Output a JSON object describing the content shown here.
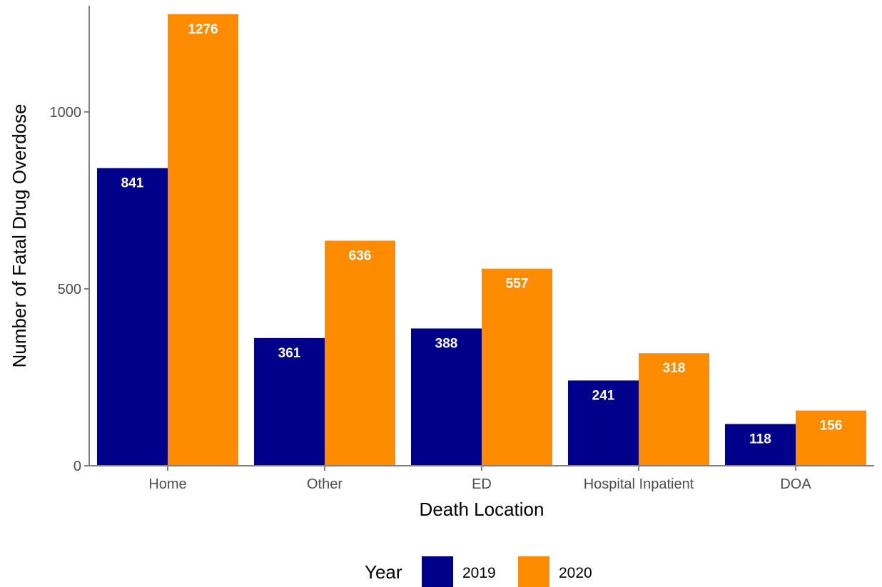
{
  "chart_data": {
    "type": "bar",
    "categories": [
      "Home",
      "Other",
      "ED",
      "Hospital Inpatient",
      "DOA"
    ],
    "series": [
      {
        "name": "2019",
        "values": [
          841,
          361,
          388,
          241,
          118
        ],
        "color": "#00008b"
      },
      {
        "name": "2020",
        "values": [
          1276,
          636,
          557,
          318,
          156
        ],
        "color": "#ff8c00"
      }
    ],
    "xlabel": "Death Location",
    "ylabel": "Number of Fatal Drug Overdose",
    "ylim": [
      0,
      1300
    ],
    "yticks": [
      0,
      500,
      1000
    ],
    "legend": {
      "title": "Year",
      "position": "bottom"
    },
    "grid": false
  }
}
